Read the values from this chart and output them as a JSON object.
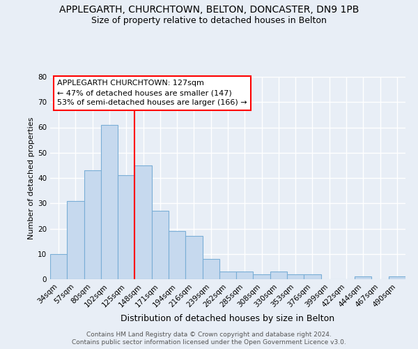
{
  "title1": "APPLEGARTH, CHURCHTOWN, BELTON, DONCASTER, DN9 1PB",
  "title2": "Size of property relative to detached houses in Belton",
  "xlabel": "Distribution of detached houses by size in Belton",
  "ylabel": "Number of detached properties",
  "categories": [
    "34sqm",
    "57sqm",
    "80sqm",
    "102sqm",
    "125sqm",
    "148sqm",
    "171sqm",
    "194sqm",
    "216sqm",
    "239sqm",
    "262sqm",
    "285sqm",
    "308sqm",
    "330sqm",
    "353sqm",
    "376sqm",
    "399sqm",
    "422sqm",
    "444sqm",
    "467sqm",
    "490sqm"
  ],
  "values": [
    10,
    31,
    43,
    61,
    41,
    45,
    27,
    19,
    17,
    8,
    3,
    3,
    2,
    3,
    2,
    2,
    0,
    0,
    1,
    0,
    1
  ],
  "bar_color": "#c6d9ee",
  "bar_edge_color": "#7aaed6",
  "red_line_x": 4.5,
  "annotation_line1": "APPLEGARTH CHURCHTOWN: 127sqm",
  "annotation_line2": "← 47% of detached houses are smaller (147)",
  "annotation_line3": "53% of semi-detached houses are larger (166) →",
  "ylim": [
    0,
    80
  ],
  "yticks": [
    0,
    10,
    20,
    30,
    40,
    50,
    60,
    70,
    80
  ],
  "footer1": "Contains HM Land Registry data © Crown copyright and database right 2024.",
  "footer2": "Contains public sector information licensed under the Open Government Licence v3.0.",
  "background_color": "#e8eef6",
  "grid_color": "#ffffff",
  "title_fontsize": 10,
  "subtitle_fontsize": 9,
  "ann_fontsize": 8,
  "ylabel_fontsize": 8,
  "xlabel_fontsize": 9,
  "tick_fontsize": 7.5,
  "footer_fontsize": 6.5
}
